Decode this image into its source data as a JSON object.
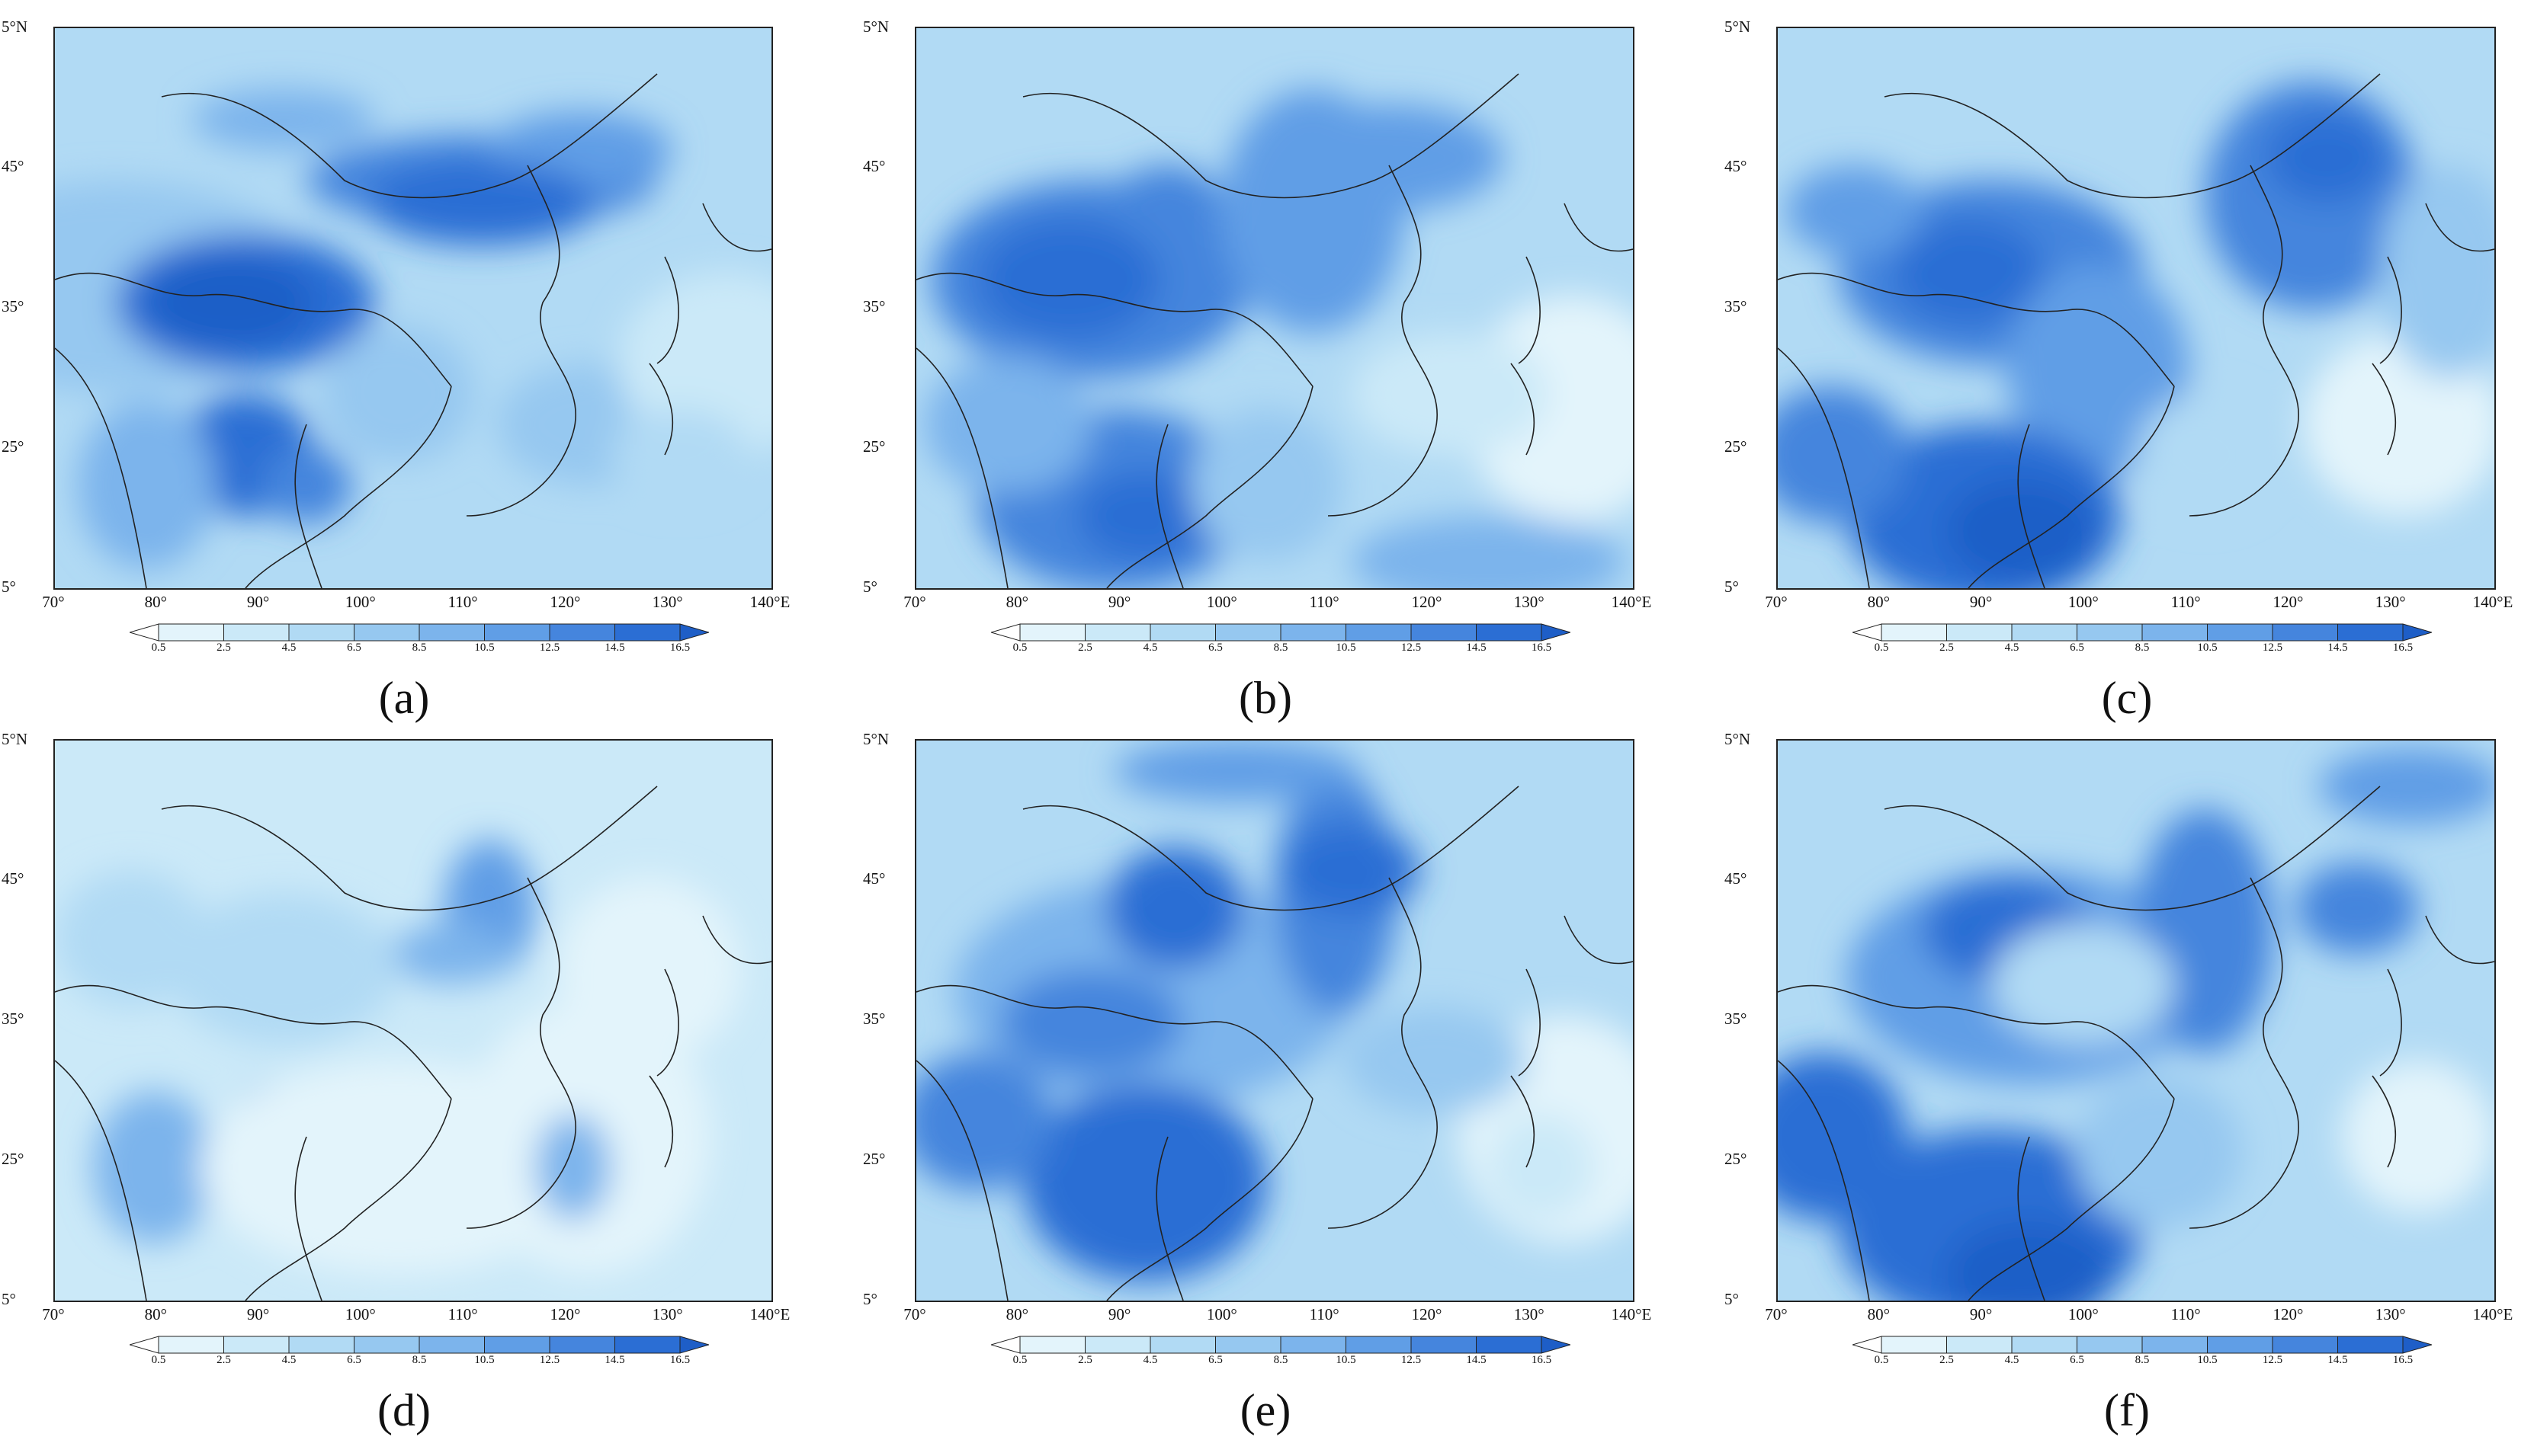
{
  "figure": {
    "panels": [
      {
        "label": "(a)",
        "theme": "a"
      },
      {
        "label": "(b)",
        "theme": "b"
      },
      {
        "label": "(c)",
        "theme": "c"
      },
      {
        "label": "(d)",
        "theme": "d"
      },
      {
        "label": "(e)",
        "theme": "e"
      },
      {
        "label": "(f)",
        "theme": "f"
      }
    ],
    "lat_labels": [
      "5°N",
      "45°",
      "35°",
      "25°",
      "5°"
    ],
    "lon_labels": [
      "70°",
      "80°",
      "90°",
      "100°",
      "110°",
      "120°",
      "130°",
      "140°E"
    ],
    "colorbar": {
      "levels": [
        "0.5",
        "2.5",
        "4.5",
        "6.5",
        "8.5",
        "10.5",
        "12.5",
        "14.5",
        "16.5"
      ],
      "colors": [
        "#ffffff",
        "#e3f4fb",
        "#cbe9f8",
        "#b1daf4",
        "#96c8f0",
        "#7cb4ec",
        "#609ee6",
        "#4585dd",
        "#2b6ed4",
        "#1e5ec7"
      ]
    }
  }
}
